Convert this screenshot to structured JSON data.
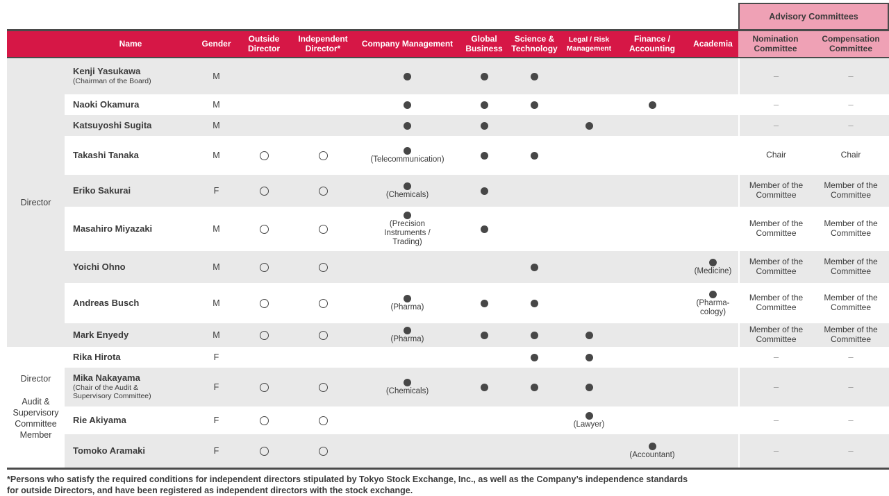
{
  "table": {
    "advisory_title": "Advisory Committees",
    "columns": [
      "Name",
      "Gender",
      "Outside Director",
      "Independent Director*",
      "Company Management",
      "Global Business",
      "Science & Technology",
      "Legal / Risk Management",
      "Finance / Accounting",
      "Academia",
      "Nomination Committee",
      "Compensation Committee"
    ],
    "skill_keys": [
      "company-management",
      "global-business",
      "science-technology",
      "legal-risk-management",
      "finance-accounting",
      "academia"
    ],
    "marks": {
      "has_skill": "●",
      "yes": "○",
      "none": "–"
    },
    "groups": [
      {
        "label": "Director"
      },
      {
        "label1": "Director",
        "label2": "Audit & Supervisory Committee Member"
      }
    ],
    "rows": [
      {
        "group": 0,
        "name": "Kenji Yasukawa",
        "note_lines": [
          "(Chairman of the Board)"
        ],
        "gender": "M",
        "outside": false,
        "independent": false,
        "skills": [
          {
            "dot": true
          },
          {
            "dot": true
          },
          {
            "dot": true
          },
          null,
          null,
          null
        ],
        "nomination": "–",
        "compensation": "–"
      },
      {
        "group": 0,
        "name": "Naoki Okamura",
        "gender": "M",
        "outside": false,
        "independent": false,
        "skills": [
          {
            "dot": true
          },
          {
            "dot": true
          },
          {
            "dot": true
          },
          null,
          {
            "dot": true
          },
          null
        ],
        "nomination": "–",
        "compensation": "–"
      },
      {
        "group": 0,
        "name": "Katsuyoshi Sugita",
        "gender": "M",
        "outside": false,
        "independent": false,
        "skills": [
          {
            "dot": true
          },
          {
            "dot": true
          },
          null,
          {
            "dot": true
          },
          null,
          null
        ],
        "nomination": "–",
        "compensation": "–"
      },
      {
        "group": 0,
        "name": "Takashi Tanaka",
        "gender": "M",
        "outside": true,
        "independent": true,
        "skills": [
          {
            "dot": true,
            "label_lines": [
              "(Telecommunication)"
            ]
          },
          {
            "dot": true
          },
          {
            "dot": true
          },
          null,
          null,
          null
        ],
        "nomination": "Chair",
        "compensation": "Chair"
      },
      {
        "group": 0,
        "name": "Eriko Sakurai",
        "gender": "F",
        "outside": true,
        "independent": true,
        "skills": [
          {
            "dot": true,
            "label_lines": [
              "(Chemicals)"
            ]
          },
          {
            "dot": true
          },
          null,
          null,
          null,
          null
        ],
        "nomination": "Member of the Committee",
        "compensation": "Member of the Committee"
      },
      {
        "group": 0,
        "name": "Masahiro Miyazaki",
        "gender": "M",
        "outside": true,
        "independent": true,
        "skills": [
          {
            "dot": true,
            "label_lines": [
              "(Precision",
              "Instruments /",
              "Trading)"
            ]
          },
          {
            "dot": true
          },
          null,
          null,
          null,
          null
        ],
        "nomination": "Member of the Committee",
        "compensation": "Member of the Committee"
      },
      {
        "group": 0,
        "name": "Yoichi Ohno",
        "gender": "M",
        "outside": true,
        "independent": true,
        "skills": [
          null,
          null,
          {
            "dot": true
          },
          null,
          null,
          {
            "dot": true,
            "label_lines": [
              "(Medicine)"
            ]
          }
        ],
        "nomination": "Member of the Committee",
        "compensation": "Member of the Committee"
      },
      {
        "group": 0,
        "name": "Andreas Busch",
        "gender": "M",
        "outside": true,
        "independent": true,
        "skills": [
          {
            "dot": true,
            "label_lines": [
              "(Pharma)"
            ]
          },
          {
            "dot": true
          },
          {
            "dot": true
          },
          null,
          null,
          {
            "dot": true,
            "label_lines": [
              "(Pharma-",
              "cology)"
            ]
          }
        ],
        "nomination": "Member of the Committee",
        "compensation": "Member of the Committee"
      },
      {
        "group": 0,
        "name": "Mark Enyedy",
        "gender": "M",
        "outside": true,
        "independent": true,
        "skills": [
          {
            "dot": true,
            "label_lines": [
              "(Pharma)"
            ]
          },
          {
            "dot": true
          },
          {
            "dot": true
          },
          {
            "dot": true
          },
          null,
          null
        ],
        "nomination": "Member of the Committee",
        "compensation": "Member of the Committee"
      },
      {
        "group": 1,
        "name": "Rika Hirota",
        "gender": "F",
        "outside": false,
        "independent": false,
        "skills": [
          null,
          null,
          {
            "dot": true
          },
          {
            "dot": true
          },
          null,
          null
        ],
        "nomination": "–",
        "compensation": "–"
      },
      {
        "group": 1,
        "name": "Mika Nakayama",
        "note_lines": [
          "(Chair of the Audit &",
          "Supervisory Committee)"
        ],
        "gender": "F",
        "outside": true,
        "independent": true,
        "skills": [
          {
            "dot": true,
            "label_lines": [
              "(Chemicals)"
            ]
          },
          {
            "dot": true
          },
          {
            "dot": true
          },
          {
            "dot": true
          },
          null,
          null
        ],
        "nomination": "–",
        "compensation": "–"
      },
      {
        "group": 1,
        "name": "Rie Akiyama",
        "gender": "F",
        "outside": true,
        "independent": true,
        "skills": [
          null,
          null,
          null,
          {
            "dot": true,
            "label_lines": [
              "(Lawyer)"
            ]
          },
          null,
          null
        ],
        "nomination": "–",
        "compensation": "–"
      },
      {
        "group": 1,
        "name": "Tomoko Aramaki",
        "gender": "F",
        "outside": true,
        "independent": true,
        "skills": [
          null,
          null,
          null,
          null,
          {
            "dot": true,
            "label_lines": [
              "(Accountant)"
            ]
          },
          null
        ],
        "nomination": "–",
        "compensation": "–"
      }
    ]
  },
  "footnote": {
    "line1": "*Persons who satisfy the required conditions for independent directors stipulated by Tokyo Stock Exchange, Inc., as well as the Company’s independence standards",
    "line2": "for outside Directors, and have been registered as independent directors with the stock exchange."
  },
  "colors": {
    "accent_red": "#d61746",
    "advisory_pink": "#efa1b5",
    "row_gray": "#e9e9e9",
    "border_dark": "#4a4a4a",
    "text_dark": "#3a3a3a"
  }
}
